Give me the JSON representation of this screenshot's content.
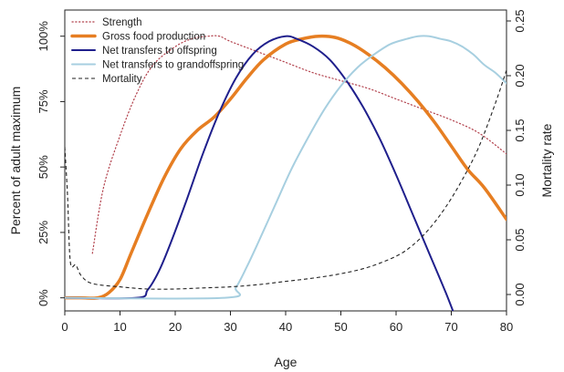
{
  "chart_data": {
    "type": "line",
    "xlabel": "Age",
    "ylabel": "Percent of adult maximum",
    "y2label": "Mortality rate",
    "xlim": [
      0,
      80
    ],
    "ylim": [
      -0.05,
      1.1
    ],
    "y2lim": [
      -0.015,
      0.26
    ],
    "xticks": [
      "0",
      "10",
      "20",
      "30",
      "40",
      "50",
      "60",
      "70",
      "80"
    ],
    "yticks": [
      "0%",
      "25%",
      "50%",
      "75%",
      "100%"
    ],
    "y2ticks": [
      "0.00",
      "0.05",
      "0.10",
      "0.15",
      "0.20",
      "0.25"
    ],
    "legend_position": "top-left",
    "grid": false,
    "series": [
      {
        "name": "Strength",
        "axis": "left",
        "color": "#b2414c",
        "style": "dotted",
        "x": [
          5,
          7,
          10,
          13,
          16,
          20,
          23,
          26,
          28,
          30,
          35,
          40,
          45,
          50,
          55,
          60,
          65,
          70,
          75,
          80
        ],
        "y": [
          0.17,
          0.42,
          0.62,
          0.78,
          0.89,
          0.96,
          0.99,
          1.0,
          1.0,
          0.98,
          0.94,
          0.9,
          0.86,
          0.83,
          0.8,
          0.76,
          0.72,
          0.68,
          0.63,
          0.55
        ]
      },
      {
        "name": "Gross food production",
        "axis": "left",
        "color": "#e67e22",
        "style": "solid-thick",
        "x": [
          0,
          3,
          6,
          8,
          10,
          12,
          15,
          18,
          21,
          24,
          27,
          30,
          33,
          36,
          40,
          43,
          46,
          49,
          52,
          55,
          58,
          61,
          64,
          67,
          70,
          73,
          76,
          80
        ],
        "y": [
          0,
          0,
          0,
          0.02,
          0.07,
          0.17,
          0.32,
          0.46,
          0.57,
          0.64,
          0.69,
          0.76,
          0.84,
          0.91,
          0.97,
          0.99,
          1.0,
          0.995,
          0.97,
          0.93,
          0.88,
          0.82,
          0.75,
          0.67,
          0.58,
          0.49,
          0.42,
          0.3
        ]
      },
      {
        "name": "Net transfers to offspring",
        "axis": "left",
        "color": "#1f1f8c",
        "style": "solid",
        "x": [
          0,
          13,
          15,
          17,
          19,
          22,
          25,
          28,
          31,
          34,
          37,
          40,
          42,
          45,
          48,
          51,
          54,
          57,
          60,
          63,
          66,
          69,
          72,
          74
        ],
        "y": [
          0,
          0,
          0.03,
          0.1,
          0.2,
          0.37,
          0.55,
          0.71,
          0.84,
          0.93,
          0.98,
          1.0,
          0.99,
          0.96,
          0.91,
          0.83,
          0.73,
          0.61,
          0.47,
          0.32,
          0.17,
          0.02,
          -0.14,
          -0.22
        ]
      },
      {
        "name": "Net transfers to grandoffspring",
        "axis": "left",
        "color": "#a7cfe0",
        "style": "solid",
        "x": [
          0,
          29,
          31,
          33,
          35,
          38,
          41,
          44,
          47,
          50,
          53,
          56,
          59,
          62,
          64,
          66,
          68,
          70,
          72,
          74,
          76,
          78,
          80
        ],
        "y": [
          0,
          0,
          0.04,
          0.12,
          0.21,
          0.35,
          0.49,
          0.61,
          0.72,
          0.81,
          0.88,
          0.93,
          0.97,
          0.99,
          1.0,
          1.0,
          0.99,
          0.98,
          0.96,
          0.93,
          0.89,
          0.86,
          0.82
        ]
      },
      {
        "name": "Mortality",
        "axis": "right",
        "color": "#222222",
        "style": "dashed",
        "x": [
          0,
          0.5,
          1,
          2,
          3,
          5,
          10,
          15,
          20,
          25,
          30,
          35,
          40,
          45,
          50,
          55,
          60,
          63,
          66,
          69,
          72,
          75,
          78,
          80
        ],
        "y": [
          0.135,
          0.09,
          0.03,
          0.027,
          0.017,
          0.01,
          0.007,
          0.005,
          0.005,
          0.006,
          0.007,
          0.009,
          0.012,
          0.015,
          0.019,
          0.025,
          0.035,
          0.045,
          0.06,
          0.08,
          0.105,
          0.135,
          0.175,
          0.205
        ]
      }
    ]
  }
}
